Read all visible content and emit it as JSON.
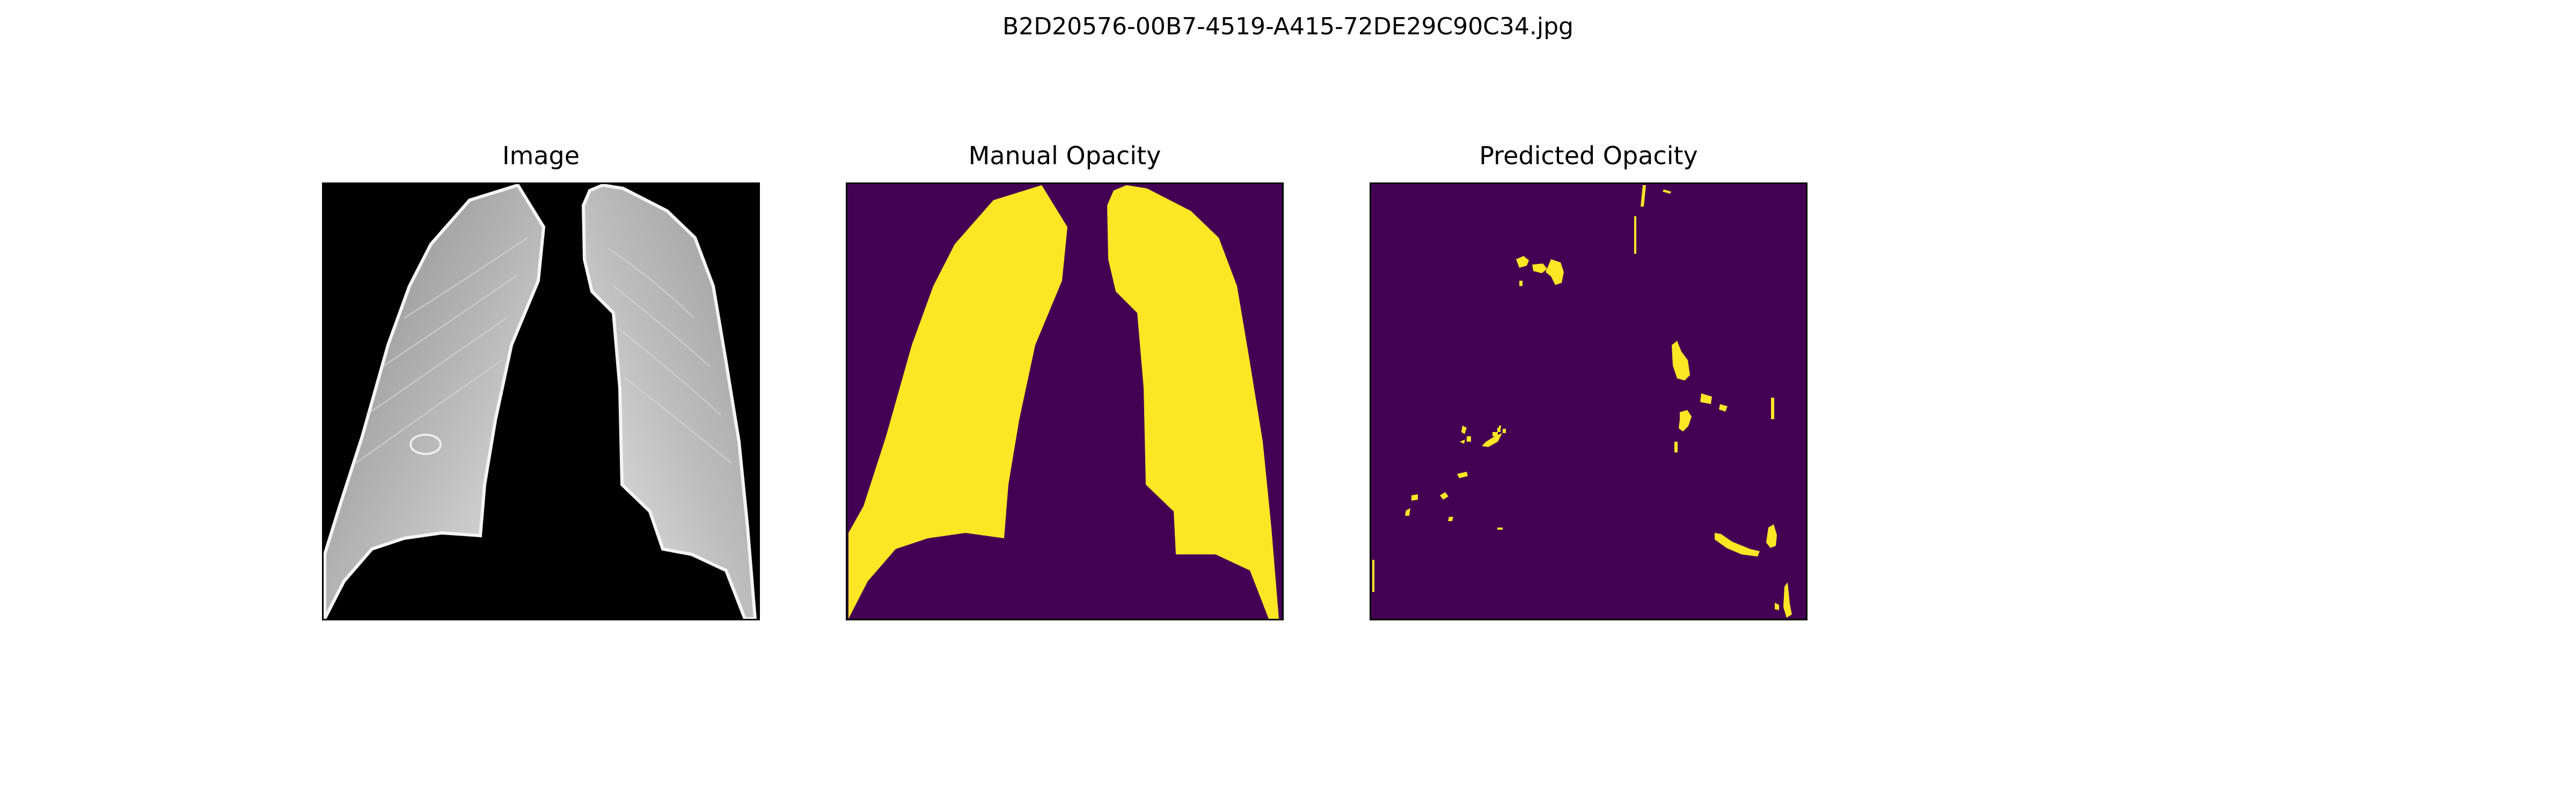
{
  "figure": {
    "title": "B2D20576-00B7-4519-A415-72DE29C90C34.jpg"
  },
  "panels": [
    {
      "title": "Image"
    },
    {
      "title": "Manual Opacity"
    },
    {
      "title": "Predicted Opacity"
    }
  ],
  "colors": {
    "mask_background": "#440154",
    "mask_foreground": "#fde725",
    "xray_background": "#000000"
  }
}
